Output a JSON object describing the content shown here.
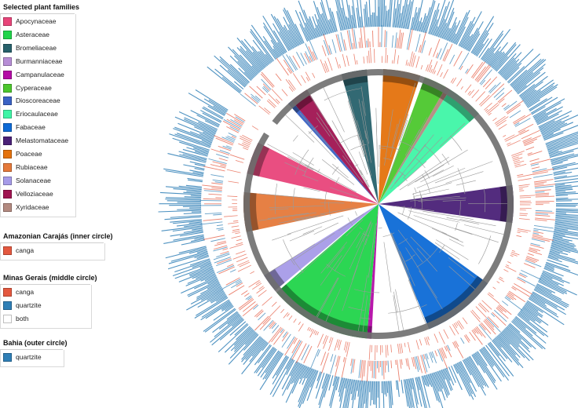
{
  "legend_groups": [
    {
      "title": "Selected plant families",
      "items": [
        {
          "label": "Apocynaceae",
          "color": "#e8457a"
        },
        {
          "label": "Asteraceae",
          "color": "#21d44a"
        },
        {
          "label": "Bromeliaceae",
          "color": "#27616b"
        },
        {
          "label": "Burmanniaceae",
          "color": "#b78ed6"
        },
        {
          "label": "Campanulaceae",
          "color": "#b40ba6"
        },
        {
          "label": "Cyperaceae",
          "color": "#4cc72d"
        },
        {
          "label": "Dioscoreaceae",
          "color": "#3a62c4"
        },
        {
          "label": "Eriocaulaceae",
          "color": "#3ff5a6"
        },
        {
          "label": "Fabaceae",
          "color": "#0d6ad6"
        },
        {
          "label": "Melastomataceae",
          "color": "#4a2177"
        },
        {
          "label": "Poaceae",
          "color": "#e4720d"
        },
        {
          "label": "Rubiaceae",
          "color": "#e5793a"
        },
        {
          "label": "Solanaceae",
          "color": "#a69be8"
        },
        {
          "label": "Velloziaceae",
          "color": "#a01451"
        },
        {
          "label": "Xyridaceae",
          "color": "#b38a80"
        }
      ]
    },
    {
      "title": "Amazonian Carajás (inner circle)",
      "items": [
        {
          "label": "canga",
          "color": "#e4583f"
        }
      ]
    },
    {
      "title": "Minas Gerais (middle circle)",
      "items": [
        {
          "label": "canga",
          "color": "#e4583f"
        },
        {
          "label": "quartzite",
          "color": "#2f7fb6"
        },
        {
          "label": "both",
          "color": "#ffffff"
        }
      ]
    },
    {
      "title": "Bahia (outer circle)",
      "items": [
        {
          "label": "quartzite",
          "color": "#2f7fb6"
        }
      ]
    }
  ],
  "family_sectors": [
    {
      "family": "Poaceae",
      "color": "#e4720d",
      "start": 2,
      "end": 18
    },
    {
      "family": "Cyperaceae",
      "color": "#4cc72d",
      "start": 20,
      "end": 30
    },
    {
      "family": "Xyridaceae",
      "color": "#b38a80",
      "start": 30,
      "end": 32
    },
    {
      "family": "Eriocaulaceae",
      "color": "#3ff5a6",
      "start": 32,
      "end": 48
    },
    {
      "family": "Melastomataceae",
      "color": "#4a2177",
      "start": 82,
      "end": 98
    },
    {
      "family": "Fabaceae",
      "color": "#0d6ad6",
      "start": 126,
      "end": 158
    },
    {
      "family": "Campanulaceae",
      "color": "#b40ba6",
      "start": 183,
      "end": 185
    },
    {
      "family": "Asteraceae",
      "color": "#21d44a",
      "start": 185,
      "end": 229
    },
    {
      "family": "Solanaceae",
      "color": "#a69be8",
      "start": 230,
      "end": 238
    },
    {
      "family": "Rubiaceae",
      "color": "#e5793a",
      "start": 258,
      "end": 275
    },
    {
      "family": "Apocynaceae",
      "color": "#e8457a",
      "start": 283,
      "end": 297
    },
    {
      "family": "Dioscoreaceae",
      "color": "#3a62c4",
      "start": 318,
      "end": 320
    },
    {
      "family": "Velloziaceae",
      "color": "#a01451",
      "start": 320,
      "end": 328
    },
    {
      "family": "Bromeliaceae",
      "color": "#27616b",
      "start": 344,
      "end": 355
    }
  ],
  "ring_colors": {
    "canga": "#e4583f",
    "quartzite": "#2f7fb6",
    "tree_ring": "#6e6e6e",
    "branch": "#9a9a9a"
  }
}
